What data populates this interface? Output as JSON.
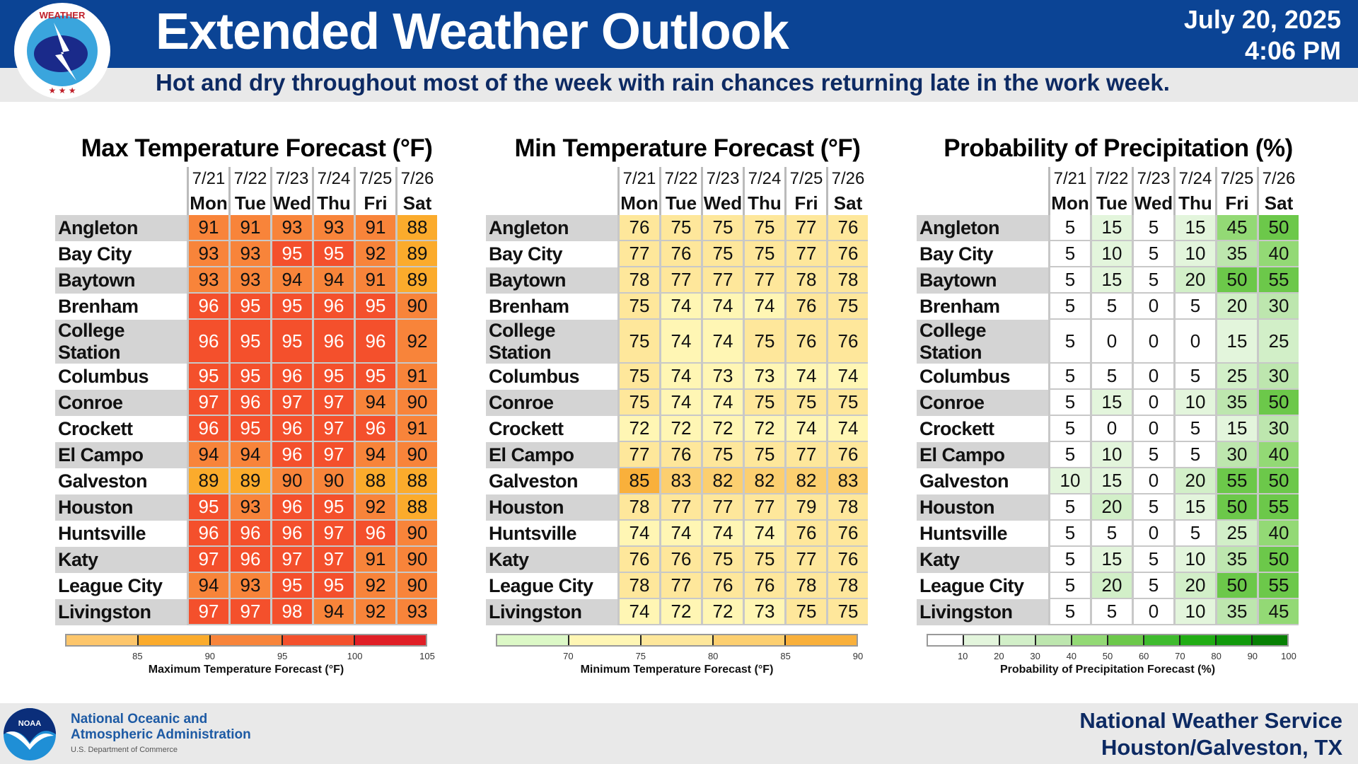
{
  "header": {
    "title": "Extended Weather Outlook",
    "date": "July 20, 2025",
    "time": "4:06 PM",
    "subtitle": "Hot and dry throughout most of the week with rain chances returning late in the work week.",
    "logo_text": "NATIONAL WEATHER SERVICE"
  },
  "dates": [
    "7/21",
    "7/22",
    "7/23",
    "7/24",
    "7/25",
    "7/26"
  ],
  "days": [
    "Mon",
    "Tue",
    "Wed",
    "Thu",
    "Fri",
    "Sat"
  ],
  "cities": [
    "Angleton",
    "Bay City",
    "Baytown",
    "Brenham",
    "College Station",
    "Columbus",
    "Conroe",
    "Crockett",
    "El Campo",
    "Galveston",
    "Houston",
    "Huntsville",
    "Katy",
    "League City",
    "Livingston"
  ],
  "panels": [
    {
      "key": "max",
      "title": "Max Temperature Forecast (°F)",
      "legend_title": "Maximum Temperature Forecast (°F)",
      "legend_ticks": [
        "85",
        "90",
        "95",
        "100",
        "105"
      ],
      "legend_colors": [
        "#fdc66b",
        "#fbab2c",
        "#f8843a",
        "#f4502c",
        "#e01f26"
      ],
      "thresholds": [
        85,
        90,
        95,
        100
      ],
      "white_from": 95,
      "values": [
        [
          91,
          91,
          93,
          93,
          91,
          88
        ],
        [
          93,
          93,
          95,
          95,
          92,
          89
        ],
        [
          93,
          93,
          94,
          94,
          91,
          89
        ],
        [
          96,
          95,
          95,
          96,
          95,
          90
        ],
        [
          96,
          95,
          95,
          96,
          96,
          92
        ],
        [
          95,
          95,
          96,
          95,
          95,
          91
        ],
        [
          97,
          96,
          97,
          97,
          94,
          90
        ],
        [
          96,
          95,
          96,
          97,
          96,
          91
        ],
        [
          94,
          94,
          96,
          97,
          94,
          90
        ],
        [
          89,
          89,
          90,
          90,
          88,
          88
        ],
        [
          95,
          93,
          96,
          95,
          92,
          88
        ],
        [
          96,
          96,
          96,
          97,
          96,
          90
        ],
        [
          97,
          96,
          97,
          97,
          91,
          90
        ],
        [
          94,
          93,
          95,
          95,
          92,
          90
        ],
        [
          97,
          97,
          98,
          94,
          92,
          93
        ]
      ]
    },
    {
      "key": "min",
      "title": "Min Temperature Forecast (°F)",
      "legend_title": "Minimum Temperature Forecast (°F)",
      "legend_ticks": [
        "70",
        "75",
        "80",
        "85",
        "90"
      ],
      "legend_colors": [
        "#dcf8c6",
        "#fff6b4",
        "#fee79b",
        "#fccf70",
        "#f9b03b"
      ],
      "thresholds": [
        70,
        75,
        80,
        85
      ],
      "white_from": 999,
      "values": [
        [
          76,
          75,
          75,
          75,
          77,
          76
        ],
        [
          77,
          76,
          75,
          75,
          77,
          76
        ],
        [
          78,
          77,
          77,
          77,
          78,
          78
        ],
        [
          75,
          74,
          74,
          74,
          76,
          75
        ],
        [
          75,
          74,
          74,
          75,
          76,
          76
        ],
        [
          75,
          74,
          73,
          73,
          74,
          74
        ],
        [
          75,
          74,
          74,
          75,
          75,
          75
        ],
        [
          72,
          72,
          72,
          72,
          74,
          74
        ],
        [
          77,
          76,
          75,
          75,
          77,
          76
        ],
        [
          85,
          83,
          82,
          82,
          82,
          83
        ],
        [
          78,
          77,
          77,
          77,
          79,
          78
        ],
        [
          74,
          74,
          74,
          74,
          76,
          76
        ],
        [
          76,
          76,
          75,
          75,
          77,
          76
        ],
        [
          78,
          77,
          76,
          76,
          78,
          78
        ],
        [
          74,
          72,
          72,
          73,
          75,
          75
        ]
      ]
    },
    {
      "key": "pop",
      "title": "Probability of Precipitation (%)",
      "legend_title": "Probability of Precipitation Forecast (%)",
      "legend_ticks": [
        "10",
        "20",
        "30",
        "40",
        "50",
        "60",
        "70",
        "80",
        "90",
        "100"
      ],
      "legend_colors": [
        "#ffffff",
        "#e3f5dc",
        "#d2efc8",
        "#bde6ae",
        "#93d975",
        "#6cc84a",
        "#3fbb2e",
        "#21ad14",
        "#119a0c",
        "#078004"
      ],
      "thresholds": [
        10,
        20,
        30,
        40,
        50,
        60,
        70,
        80,
        90
      ],
      "white_from": 999,
      "values": [
        [
          5,
          15,
          5,
          15,
          45,
          50
        ],
        [
          5,
          10,
          5,
          10,
          35,
          40
        ],
        [
          5,
          15,
          5,
          20,
          50,
          55
        ],
        [
          5,
          5,
          0,
          5,
          20,
          30
        ],
        [
          5,
          0,
          0,
          0,
          15,
          25
        ],
        [
          5,
          5,
          0,
          5,
          25,
          30
        ],
        [
          5,
          15,
          0,
          10,
          35,
          50
        ],
        [
          5,
          0,
          0,
          5,
          15,
          30
        ],
        [
          5,
          10,
          5,
          5,
          30,
          40
        ],
        [
          10,
          15,
          0,
          20,
          55,
          50
        ],
        [
          5,
          20,
          5,
          15,
          50,
          55
        ],
        [
          5,
          5,
          0,
          5,
          25,
          40
        ],
        [
          5,
          15,
          5,
          10,
          35,
          50
        ],
        [
          5,
          20,
          5,
          20,
          50,
          55
        ],
        [
          5,
          5,
          0,
          10,
          35,
          45
        ]
      ]
    }
  ],
  "footer": {
    "noaa_line1": "National Oceanic and",
    "noaa_line2": "Atmospheric Administration",
    "noaa_sub": "U.S. Department of Commerce",
    "noaa_logo_text": "NOAA",
    "nws_line1": "National Weather Service",
    "nws_line2": "Houston/Galveston, TX"
  }
}
